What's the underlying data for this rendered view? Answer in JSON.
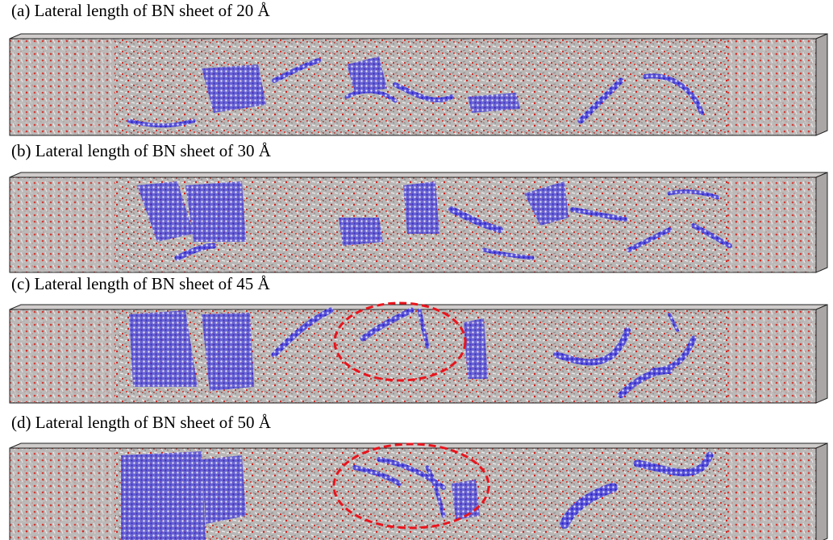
{
  "panels": [
    {
      "label": "(a) Lateral length of BN sheet of 20 Å"
    },
    {
      "label": "(b) Lateral length of BN sheet of 30 Å"
    },
    {
      "label": "(c) Lateral length of BN sheet of 45 Å"
    },
    {
      "label": "(d) Lateral length of BN sheet of 50 Å"
    }
  ]
}
